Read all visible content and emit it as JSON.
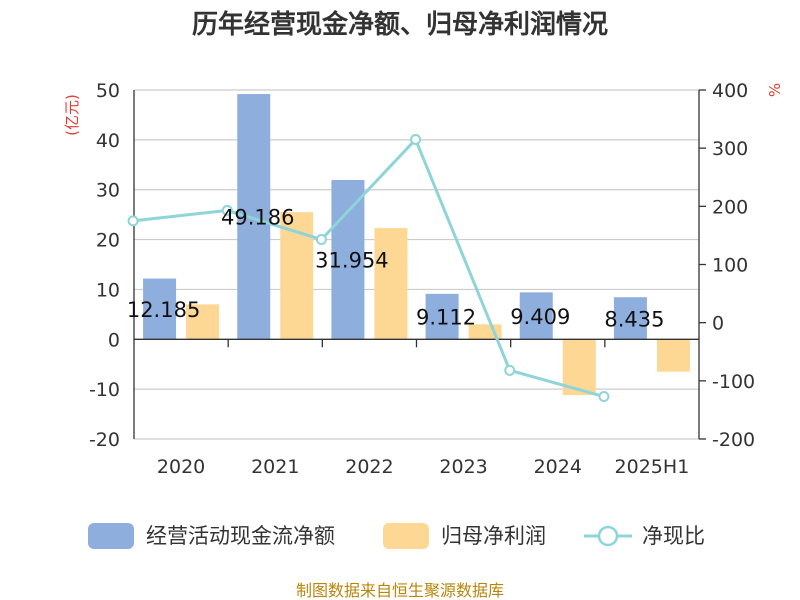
{
  "chart_data": {
    "type": "bar",
    "title": "历年经营现金净额、归母净利润情况",
    "categories": [
      "2020",
      "2021",
      "2022",
      "2023",
      "2024",
      "2025H1"
    ],
    "y_left": {
      "unit": "(亿元)",
      "ylim": [
        -20,
        50
      ],
      "ticks": [
        -20,
        -10,
        0,
        10,
        20,
        30,
        40,
        50
      ]
    },
    "y_right": {
      "unit": "%",
      "ylim": [
        -200,
        400
      ],
      "ticks": [
        -200,
        -100,
        0,
        100,
        200,
        300,
        400
      ]
    },
    "series": [
      {
        "name": "经营活动现金流净额",
        "axis": "left",
        "kind": "bar",
        "color": "#8eaedd",
        "values": [
          12.185,
          49.186,
          31.954,
          9.112,
          9.409,
          8.435
        ],
        "labels": [
          "12.185",
          "49.186",
          "31.954",
          "9.112",
          "9.409",
          "8.435"
        ]
      },
      {
        "name": "归母净利润",
        "axis": "left",
        "kind": "bar",
        "color": "#fdd794",
        "values": [
          7.0,
          25.5,
          22.3,
          3.0,
          -11.2,
          -6.5
        ]
      },
      {
        "name": "净现比",
        "axis": "right",
        "kind": "line",
        "color": "#8ed4d8",
        "values": [
          175,
          193,
          143,
          315,
          -82,
          -127
        ]
      }
    ],
    "grid": true,
    "legend_position": "bottom"
  },
  "source_text": "制图数据来自恒生聚源数据库"
}
